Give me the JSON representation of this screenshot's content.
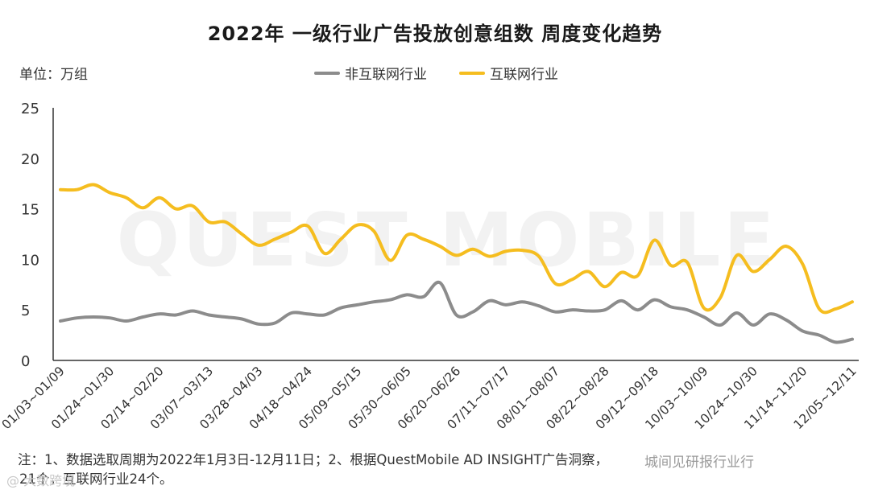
{
  "title": "2022年 一级行业广告投放创意组数 周度变化趋势",
  "unit_label": "单位：万组",
  "legend": [
    {
      "label": "非互联网行业",
      "color": "#8c8c8c"
    },
    {
      "label": "互联网行业",
      "color": "#f5bd1f"
    }
  ],
  "notes": {
    "line1": "注：1、数据选取周期为2022年1月3日-12月11日；2、根据QuestMobile AD INSIGHT广告洞察，",
    "line2": "21个，互联网行业24个。"
  },
  "watermarks": {
    "background": "QUEST MOBILE",
    "bottom_left": "@ 大数跨境",
    "bottom_right": "城间见研报行业行"
  },
  "chart_data": {
    "type": "line",
    "title": "2022年 一级行业广告投放创意组数 周度变化趋势",
    "xlabel": "",
    "ylabel": "万组",
    "ylim": [
      0,
      25
    ],
    "yticks": [
      0,
      5,
      10,
      15,
      20,
      25
    ],
    "x_tick_labels": [
      "01/03~01/09",
      "01/24~01/30",
      "02/14~02/20",
      "03/07~03/13",
      "03/28~04/03",
      "04/18~04/24",
      "05/09~05/15",
      "05/30~06/05",
      "06/20~06/26",
      "07/11~07/17",
      "08/01~08/07",
      "08/22~08/28",
      "09/12~09/18",
      "10/03~10/09",
      "10/24~10/30",
      "11/14~11/20",
      "12/05~12/11"
    ],
    "n_points": 49,
    "series": [
      {
        "name": "非互联网行业",
        "color": "#8c8c8c",
        "values": [
          3.9,
          4.2,
          4.3,
          4.2,
          3.9,
          4.3,
          4.6,
          4.5,
          4.9,
          4.5,
          4.3,
          4.1,
          3.6,
          3.7,
          4.7,
          4.6,
          4.5,
          5.2,
          5.5,
          5.8,
          6.0,
          6.5,
          6.3,
          7.7,
          4.5,
          4.8,
          5.9,
          5.5,
          5.8,
          5.4,
          4.8,
          5.0,
          4.9,
          5.0,
          5.9,
          5.0,
          6.0,
          5.3,
          5.0,
          4.3,
          3.5,
          4.7,
          3.5,
          4.6,
          4.0,
          2.9,
          2.5,
          1.8,
          2.1
        ]
      },
      {
        "name": "互联网行业",
        "color": "#f5bd1f",
        "values": [
          16.9,
          16.9,
          17.4,
          16.6,
          16.1,
          15.1,
          16.1,
          15.0,
          15.3,
          13.7,
          13.7,
          12.5,
          11.4,
          12.0,
          12.7,
          13.3,
          10.6,
          12.0,
          13.4,
          12.8,
          9.9,
          12.4,
          12.0,
          11.3,
          10.4,
          11.0,
          10.3,
          10.8,
          10.9,
          10.3,
          7.6,
          8.0,
          8.8,
          7.3,
          8.7,
          8.4,
          11.9,
          9.4,
          9.7,
          5.2,
          6.2,
          10.4,
          8.8,
          10.0,
          11.3,
          9.5,
          5.1,
          5.1,
          5.8
        ]
      }
    ]
  }
}
